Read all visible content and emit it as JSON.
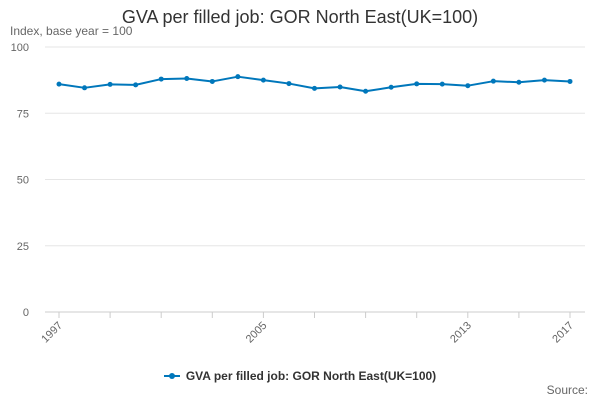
{
  "chart_data": {
    "type": "line",
    "title": "GVA per filled job: GOR North East(UK=100)",
    "ylabel": "Index, base year = 100",
    "xlabel": "",
    "x": [
      1997,
      1998,
      1999,
      2000,
      2001,
      2002,
      2003,
      2004,
      2005,
      2006,
      2007,
      2008,
      2009,
      2010,
      2011,
      2012,
      2013,
      2014,
      2015,
      2016,
      2017
    ],
    "x_tick_labels": [
      "1997",
      "2005",
      "2013",
      "2017"
    ],
    "y_ticks": [
      0,
      25,
      50,
      75,
      100
    ],
    "ylim": [
      0,
      100
    ],
    "grid": true,
    "legend_position": "bottom",
    "series": [
      {
        "name": "GVA per filled job: GOR North East(UK=100)",
        "color": "#0077bb",
        "values": [
          86.0,
          84.6,
          85.9,
          85.7,
          87.9,
          88.1,
          87.0,
          88.8,
          87.5,
          86.2,
          84.4,
          84.9,
          83.3,
          84.8,
          86.1,
          86.0,
          85.4,
          87.1,
          86.7,
          87.5,
          87.0
        ]
      }
    ]
  },
  "legend": {
    "label": "GVA per filled job: GOR North East(UK=100)"
  },
  "footer": {
    "source": "Source:"
  }
}
